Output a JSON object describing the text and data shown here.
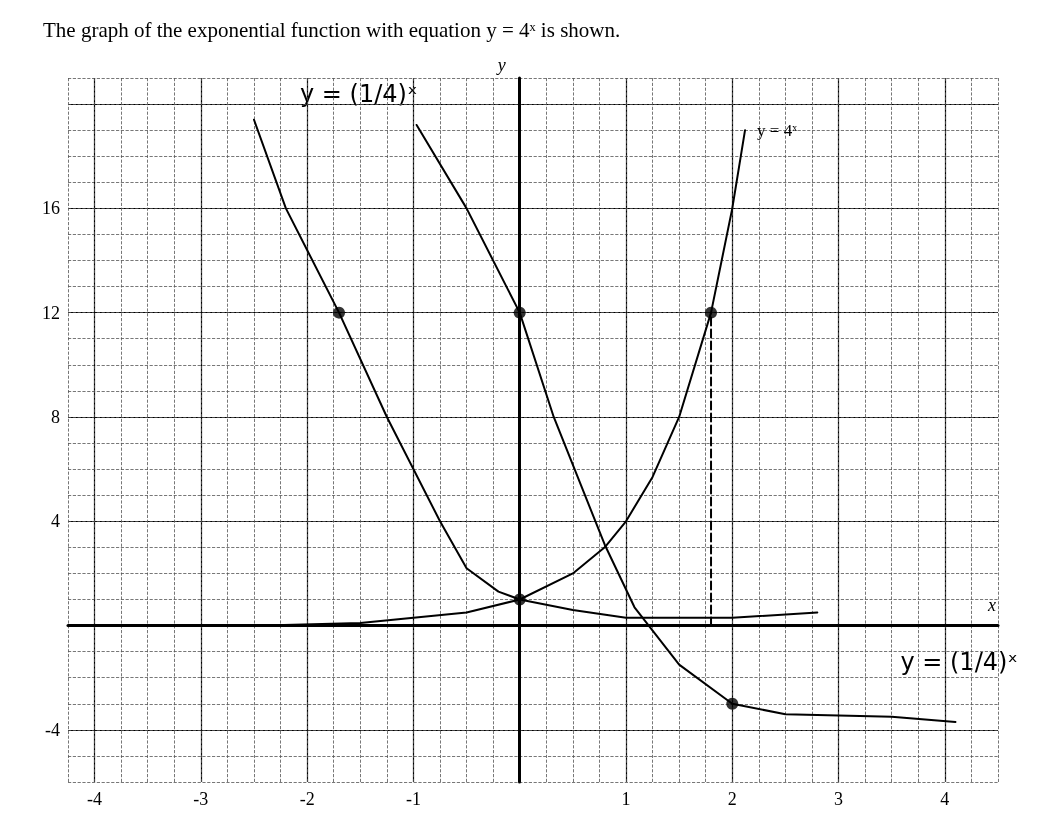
{
  "chart_data": {
    "type": "line",
    "title": "The graph of the exponential function with equation y = 4ˣ is shown.",
    "xlabel": "x",
    "ylabel": "y",
    "xlim": [
      -4.25,
      4.5
    ],
    "ylim": [
      -6,
      21
    ],
    "xticks": [
      -4,
      -3,
      -2,
      -1,
      1,
      2,
      3,
      4
    ],
    "yticks": [
      -4,
      4,
      8,
      12,
      16,
      {
        "value": 20,
        "label": null
      }
    ],
    "grid": true,
    "legend": false,
    "marker": "none",
    "line_style": "solid",
    "series": [
      {
        "name": "y = 4ˣ",
        "color": "#000000",
        "x": [
          -2.4,
          -1.5,
          -1,
          -0.5,
          0,
          0.5,
          0.8,
          1,
          1.25,
          1.5,
          1.8,
          2,
          2.12
        ],
        "values": [
          0,
          0.1,
          0.3,
          0.5,
          1,
          2,
          3,
          4,
          5.7,
          8,
          12,
          16,
          19
        ]
      },
      {
        "color": "#000000",
        "x": [
          -2.5,
          -2.2,
          -1.7,
          -1.25,
          -0.75,
          -0.5,
          -0.2,
          0,
          0.5,
          1,
          2,
          2.8
        ],
        "values": [
          19.4,
          16,
          12,
          8,
          4,
          2.2,
          1.3,
          1,
          0.6,
          0.3,
          0.3,
          0.5
        ]
      },
      {
        "color": "#000000",
        "x": [
          -0.97,
          -0.5,
          0,
          0.32,
          0.8,
          1.08,
          1.5,
          2,
          2.5,
          3.5,
          4.1
        ],
        "values": [
          19.2,
          16,
          12,
          8,
          3.1,
          0.7,
          -1.5,
          -3,
          -3.4,
          -3.5,
          -3.7
        ]
      },
      {
        "color": "#000000",
        "line_style": "dashed",
        "x": [
          1.8,
          1.8
        ],
        "values": [
          0,
          12
        ]
      },
      {
        "type": "scatter",
        "marker": "circle",
        "color": "#000000",
        "x": [
          -1.7,
          0,
          1.8,
          0,
          2
        ],
        "values": [
          12,
          12,
          12,
          1,
          -3
        ]
      }
    ],
    "annotations": [
      "y = (1/4)ˣ",
      "y = (1/4)ˣ"
    ]
  }
}
